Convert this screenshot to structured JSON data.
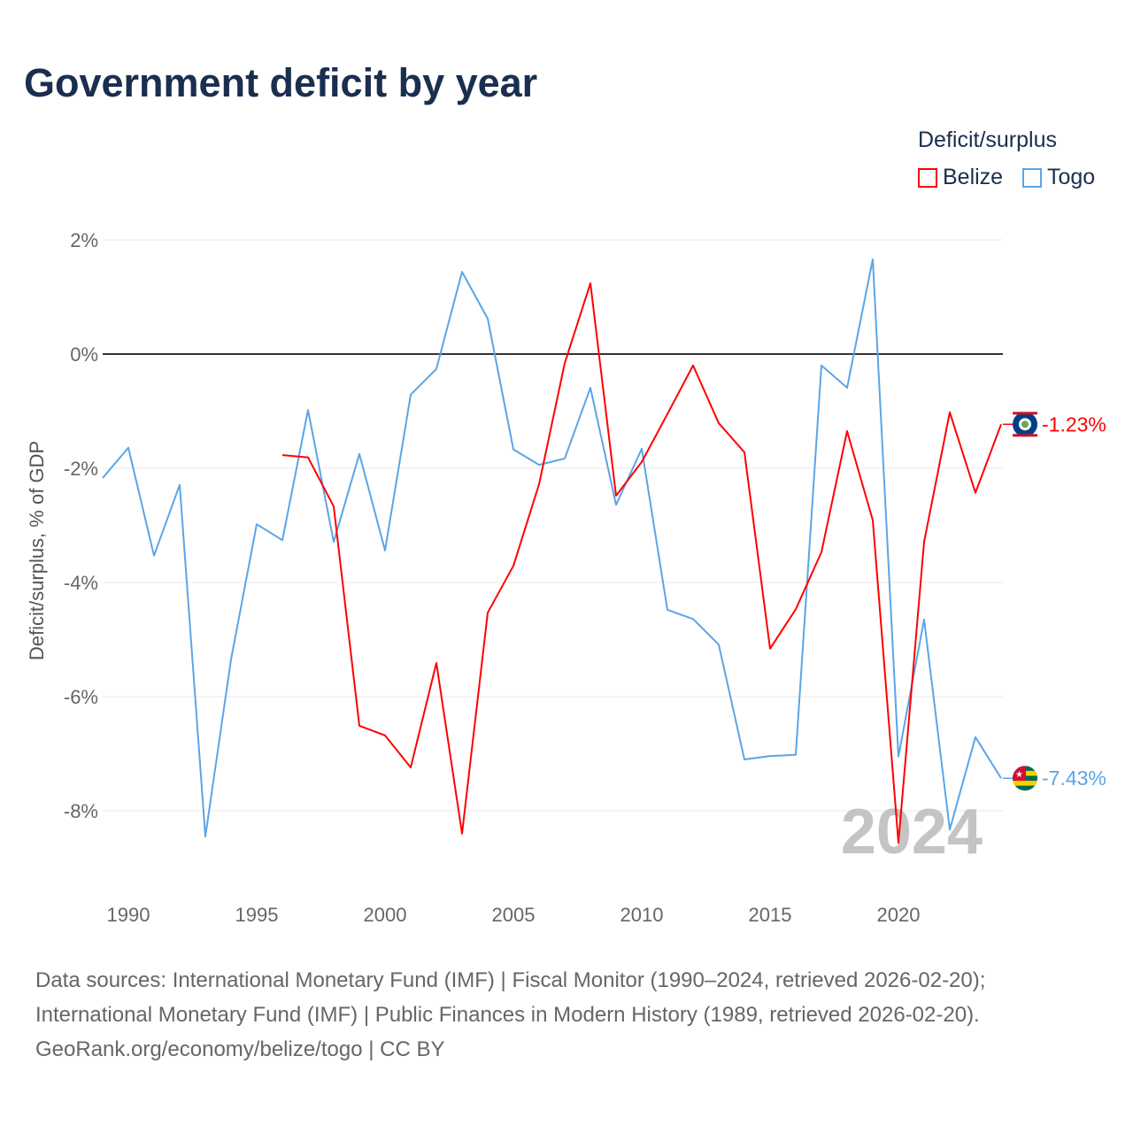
{
  "title": "Government deficit by year",
  "legend": {
    "title": "Deficit/surplus",
    "items": [
      {
        "label": "Belize",
        "color": "#ff0000"
      },
      {
        "label": "Togo",
        "color": "#5aa5e8"
      }
    ]
  },
  "watermark_year": "2024",
  "end_labels": {
    "belize": "-1.23%",
    "togo": "-7.43%"
  },
  "footer": {
    "line1": "Data sources: International Monetary Fund (IMF) | Fiscal Monitor (1990–2024, retrieved 2026-02-20);",
    "line2": "International Monetary Fund (IMF) | Public Finances in Modern History (1989, retrieved 2026-02-20).",
    "line3": "GeoRank.org/economy/belize/togo | CC BY"
  },
  "chart_data": {
    "type": "line",
    "title": "Government deficit by year",
    "xlabel": "",
    "ylabel": "Deficit/surplus, % of GDP",
    "xlim": [
      1989,
      2024
    ],
    "ylim": [
      -9.4,
      2.4
    ],
    "xticks": [
      1990,
      1995,
      2000,
      2005,
      2010,
      2015,
      2020
    ],
    "yticks": [
      2,
      0,
      -2,
      -4,
      -6,
      -8
    ],
    "ytick_labels": [
      "2%",
      "0%",
      "-2%",
      "-4%",
      "-6%",
      "-8%"
    ],
    "grid": true,
    "legend_position": "top-right",
    "series": [
      {
        "name": "Belize",
        "color": "#ff0000",
        "x": [
          1996,
          1997,
          1998,
          1999,
          2000,
          2001,
          2002,
          2003,
          2004,
          2005,
          2006,
          2007,
          2008,
          2009,
          2010,
          2011,
          2012,
          2013,
          2014,
          2015,
          2016,
          2017,
          2018,
          2019,
          2020,
          2021,
          2022,
          2023,
          2024
        ],
        "values": [
          -1.77,
          -1.81,
          -2.67,
          -6.51,
          -6.68,
          -7.24,
          -5.41,
          -8.4,
          -4.53,
          -3.71,
          -2.28,
          -0.16,
          1.24,
          -2.48,
          -1.89,
          -1.05,
          -0.2,
          -1.21,
          -1.72,
          -5.16,
          -4.47,
          -3.47,
          -1.35,
          -2.91,
          -8.56,
          -3.29,
          -1.02,
          -2.43,
          -1.23
        ]
      },
      {
        "name": "Togo",
        "color": "#5aa5e8",
        "x": [
          1989,
          1990,
          1991,
          1992,
          1993,
          1994,
          1995,
          1996,
          1997,
          1998,
          1999,
          2000,
          2001,
          2002,
          2003,
          2004,
          2005,
          2006,
          2007,
          2008,
          2009,
          2010,
          2011,
          2012,
          2013,
          2014,
          2015,
          2016,
          2017,
          2018,
          2019,
          2020,
          2021,
          2022,
          2023,
          2024
        ],
        "values": [
          -2.17,
          -1.64,
          -3.53,
          -2.29,
          -8.45,
          -5.35,
          -2.98,
          -3.26,
          -0.98,
          -3.29,
          -1.75,
          -3.44,
          -0.71,
          -0.26,
          1.44,
          0.62,
          -1.67,
          -1.94,
          -1.83,
          -0.59,
          -2.64,
          -1.66,
          -4.48,
          -4.64,
          -5.09,
          -7.1,
          -7.04,
          -7.02,
          -0.2,
          -0.59,
          1.66,
          -7.05,
          -4.65,
          -8.33,
          -6.71,
          -7.43
        ]
      }
    ]
  }
}
